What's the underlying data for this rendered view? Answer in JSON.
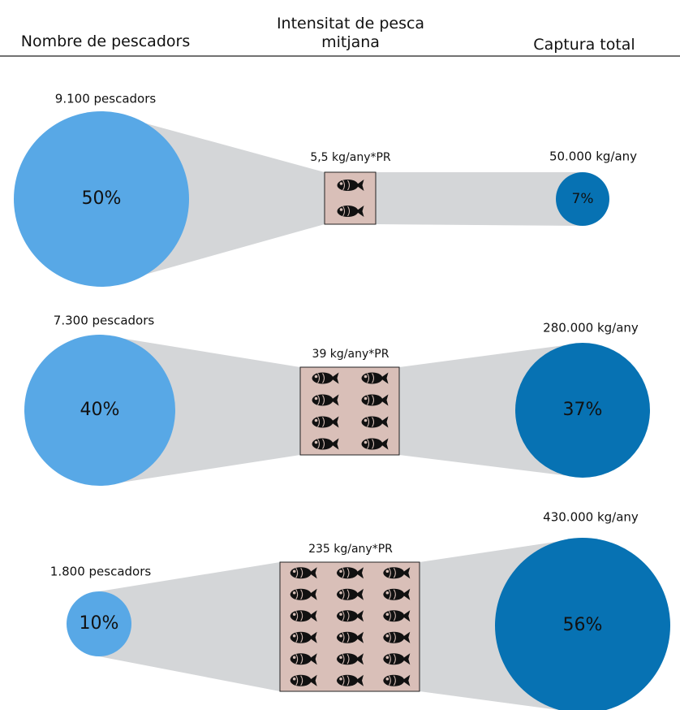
{
  "header": {
    "columns": [
      "Nombre de pescadors",
      "Intensitat de pesca mitjana",
      "Captura total"
    ]
  },
  "rows": [
    {
      "fishers": "9.100 pescadors",
      "fishers_share": "50%",
      "intensity": "5,5 kg/any*PR",
      "catch": "50.000 kg/any",
      "catch_share": "7%"
    },
    {
      "fishers": "7.300 pescadors",
      "fishers_share": "40%",
      "intensity": "39 kg/any*PR",
      "catch": "280.000 kg/any",
      "catch_share": "37%"
    },
    {
      "fishers": "1.800 pescadors",
      "fishers_share": "10%",
      "intensity": "235 kg/any*PR",
      "catch": "430.000 kg/any",
      "catch_share": "56%"
    }
  ]
}
